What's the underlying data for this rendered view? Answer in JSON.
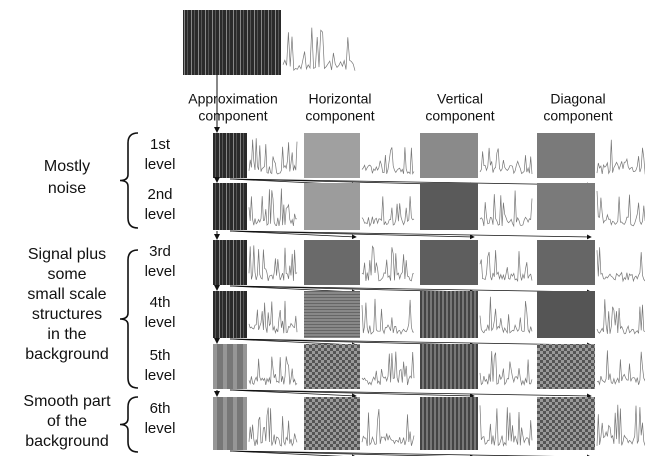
{
  "columns": [
    "Approximation component",
    "Horizontal component",
    "Vertical component",
    "Diagonal component"
  ],
  "levels": [
    [
      "1st",
      "level"
    ],
    [
      "2nd",
      "level"
    ],
    [
      "3rd",
      "level"
    ],
    [
      "4th",
      "level"
    ],
    [
      "5th",
      "level"
    ],
    [
      "6th",
      "level"
    ]
  ],
  "groups": [
    [
      "Mostly",
      "noise"
    ],
    [
      "Signal plus",
      "some",
      "small scale",
      "structures",
      "in the",
      "background"
    ],
    [
      "Smooth part",
      "of the",
      "background"
    ]
  ]
}
